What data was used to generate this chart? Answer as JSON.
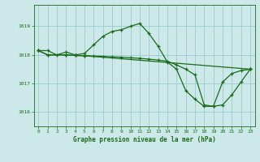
{
  "xlabel": "Graphe pression niveau de la mer (hPa)",
  "bg_color": "#cce8e8",
  "grid_color": "#99cccc",
  "line_color": "#1a6b1a",
  "ylim": [
    1015.5,
    1019.75
  ],
  "xlim": [
    -0.5,
    23.5
  ],
  "yticks": [
    1016,
    1017,
    1018,
    1019
  ],
  "xticks": [
    0,
    1,
    2,
    3,
    4,
    5,
    6,
    7,
    8,
    9,
    10,
    11,
    12,
    13,
    14,
    15,
    16,
    17,
    18,
    19,
    20,
    21,
    22,
    23
  ],
  "series1_x": [
    0,
    1,
    2,
    3,
    4,
    5,
    6,
    7,
    8,
    9,
    10,
    11,
    12,
    13,
    14,
    15,
    16,
    17,
    18,
    19,
    20,
    21,
    22,
    23
  ],
  "series1_y": [
    1018.15,
    1018.15,
    1018.0,
    1018.1,
    1018.0,
    1018.05,
    1018.35,
    1018.65,
    1018.82,
    1018.88,
    1019.0,
    1019.1,
    1018.75,
    1018.3,
    1017.75,
    1017.5,
    1016.75,
    1016.45,
    1016.2,
    1016.2,
    1017.05,
    1017.35,
    1017.45,
    1017.5
  ],
  "series2_x": [
    0,
    1,
    3,
    4,
    5,
    6,
    7,
    8,
    9,
    10,
    11,
    12,
    13,
    14,
    15,
    16,
    17,
    18,
    19,
    20,
    21,
    22,
    23
  ],
  "series2_y": [
    1018.15,
    1018.0,
    1018.0,
    1017.98,
    1017.97,
    1017.96,
    1017.95,
    1017.93,
    1017.92,
    1017.9,
    1017.88,
    1017.85,
    1017.82,
    1017.78,
    1017.65,
    1017.5,
    1017.3,
    1016.25,
    1016.2,
    1016.25,
    1016.6,
    1017.05,
    1017.5
  ],
  "series3_x": [
    0,
    1,
    3,
    4,
    5,
    23
  ],
  "series3_y": [
    1018.15,
    1018.0,
    1018.0,
    1017.98,
    1017.97,
    1017.5
  ]
}
